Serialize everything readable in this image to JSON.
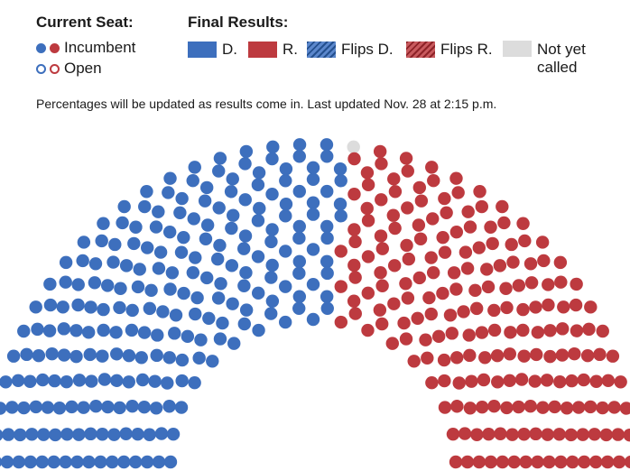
{
  "legend": {
    "current_seat_title": "Current Seat:",
    "incumbent_label": "Incumbent",
    "open_label": "Open",
    "final_results_title": "Final Results:",
    "dem_label": "D.",
    "rep_label": "R.",
    "flips_d_label": "Flips D.",
    "flips_r_label": "Flips R.",
    "not_yet_called_label": "Not yet called"
  },
  "note": "Percentages will be updated as results come in. Last updated Nov. 28 at 2:15 p.m.",
  "colors": {
    "democrat": "#3d6fbd",
    "republican": "#bd3a3f",
    "not_called": "#dcdcdc"
  },
  "chart_data": {
    "type": "parliament",
    "title": "",
    "total_seats": 435,
    "series": [
      {
        "name": "D.",
        "values": [
          234
        ]
      },
      {
        "name": "R.",
        "values": [
          200
        ]
      },
      {
        "name": "Not yet called",
        "values": [
          1
        ]
      }
    ],
    "rows": 16,
    "order_left_to_right": [
      "D.",
      "Not yet called",
      "R."
    ]
  }
}
